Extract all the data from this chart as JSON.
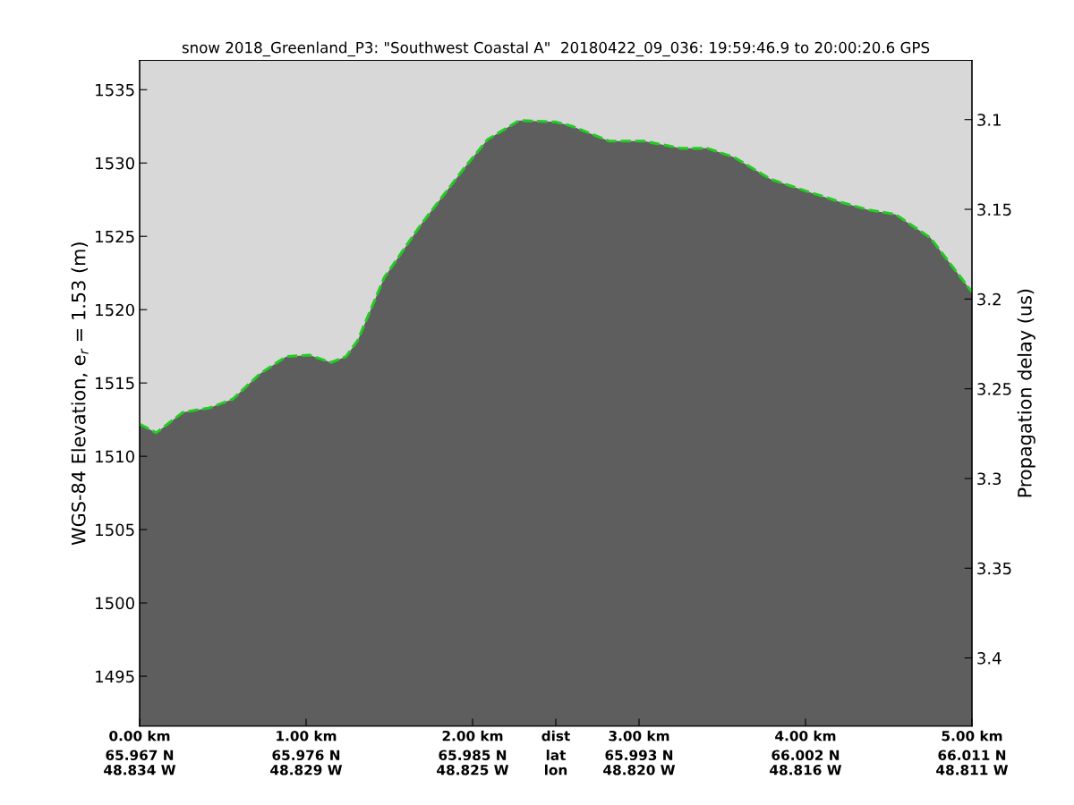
{
  "chart_data": {
    "type": "area",
    "title": "snow 2018_Greenland_P3: \"Southwest Coastal A\"  20180422_09_036: 19:59:46.9 to 20:00:20.6 GPS",
    "ylabel": "WGS-84 Elevation, e$_{r}$ = 1.53 (m)",
    "y2label": "Propagation delay (us)",
    "x": [
      0.0,
      0.1,
      0.26,
      0.42,
      0.56,
      0.72,
      0.88,
      1.02,
      1.15,
      1.24,
      1.31,
      1.47,
      1.69,
      1.96,
      2.09,
      2.28,
      2.5,
      2.6,
      2.82,
      3.03,
      3.25,
      3.41,
      3.57,
      3.79,
      4.0,
      4.22,
      4.38,
      4.54,
      4.75,
      5.0
    ],
    "series": [
      {
        "type": "area",
        "color": "#5e5e5e",
        "line_style": "dashed",
        "values": [
          1512.2,
          1511.6,
          1513.0,
          1513.3,
          1513.9,
          1515.6,
          1516.8,
          1516.9,
          1516.4,
          1516.8,
          1517.9,
          1522.2,
          1525.8,
          1529.8,
          1531.6,
          1532.9,
          1532.8,
          1532.5,
          1531.5,
          1531.5,
          1531.0,
          1531.0,
          1530.4,
          1528.9,
          1528.1,
          1527.3,
          1526.8,
          1526.5,
          1524.9,
          1521.2
        ]
      }
    ],
    "xlim": [
      0,
      5
    ],
    "xticks": [
      {
        "value": 0,
        "label": "0.00 km"
      },
      {
        "value": 1,
        "label": "1.00 km"
      },
      {
        "value": 2,
        "label": "2.00 km"
      },
      {
        "value": 2.5,
        "label": "dist"
      },
      {
        "value": 3,
        "label": "3.00 km"
      },
      {
        "value": 4,
        "label": "4.00 km"
      },
      {
        "value": 5,
        "label": "5.00 km"
      }
    ],
    "annotations": [
      "65.967 N\n48.834 W",
      "65.976 N\n48.829 W",
      "65.985 N\n48.825 W",
      "lat\nlon",
      "65.993 N\n48.820 W",
      "66.002 N\n48.816 W",
      "66.011 N\n48.811 W"
    ],
    "ylim": [
      1491.6,
      1537
    ],
    "yticks": [
      1495,
      1500,
      1505,
      1510,
      1515,
      1520,
      1525,
      1530,
      1535
    ],
    "y2lim": [
      3.438,
      3.067
    ],
    "y2ticks": [
      3.1,
      3.15,
      3.2,
      3.25,
      3.3,
      3.35,
      3.4
    ],
    "grid": false,
    "legend": false,
    "marker": "none"
  }
}
